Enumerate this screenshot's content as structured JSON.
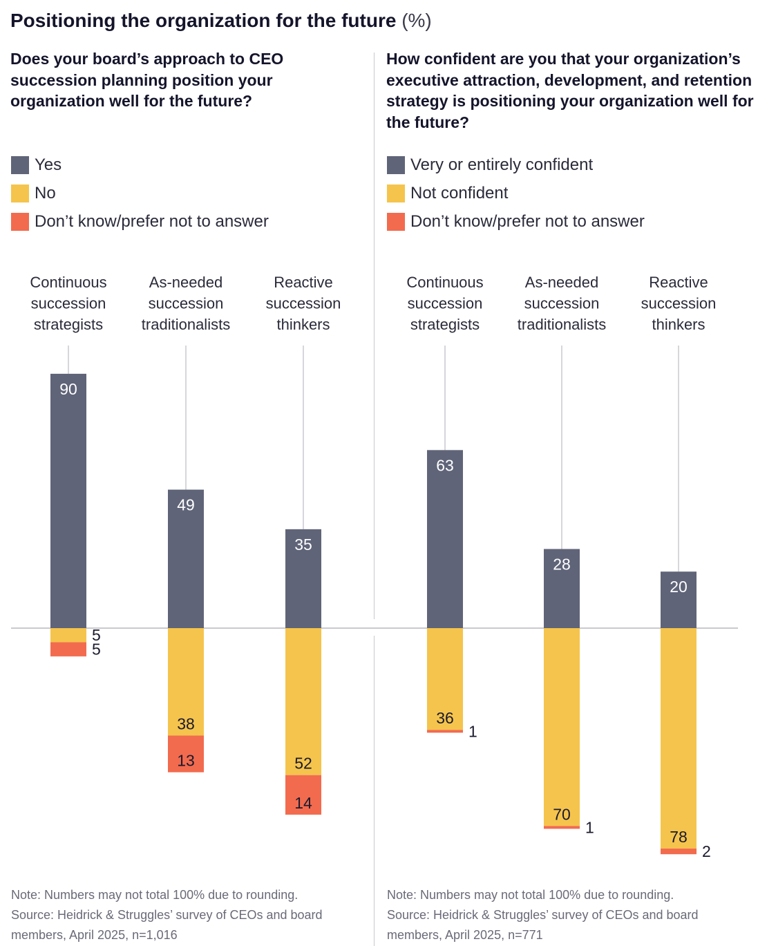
{
  "title": "Positioning the organization for the future",
  "title_unit": "(%)",
  "colors": {
    "positive": "#5f6478",
    "negative": "#f5c44c",
    "unknown": "#f26b4e",
    "category_text": "#2a2a3a",
    "leader_line": "#c9c9cf",
    "baseline": "#c9c9cf"
  },
  "left_panel": {
    "question": "Does your board’s approach to CEO succession planning position your organization well for the future?",
    "legend": [
      {
        "label": "Yes",
        "color": "#5f6478"
      },
      {
        "label": "No",
        "color": "#f5c44c"
      },
      {
        "label": "Don’t know/prefer not to answer",
        "color": "#f26b4e"
      }
    ],
    "note": "Note: Numbers may not total 100% due to rounding.",
    "source": "Source: Heidrick & Struggles’ survey of CEOs and board members, April 2025, n=1,016"
  },
  "right_panel": {
    "question": "How confident are you that your organization’s executive attraction, development, and retention strategy is positioning your organization well for the future?",
    "legend": [
      {
        "label": "Very or entirely confident",
        "color": "#5f6478"
      },
      {
        "label": "Not confident",
        "color": "#f5c44c"
      },
      {
        "label": "Don’t know/prefer not to answer",
        "color": "#f26b4e"
      }
    ],
    "note": "Note: Numbers may not total 100% due to rounding.",
    "source": "Source: Heidrick & Struggles’ survey of CEOs and board members, April 2025, n=771"
  },
  "chart_data": [
    {
      "type": "bar",
      "stacked": true,
      "diverging": true,
      "categories": [
        [
          "Continuous",
          "succession",
          "strategists"
        ],
        [
          "As-needed",
          "succession",
          "traditionalists"
        ],
        [
          "Reactive",
          "succession",
          "thinkers"
        ]
      ],
      "series": [
        {
          "name": "Yes",
          "values": [
            90,
            49,
            35
          ],
          "direction": "up"
        },
        {
          "name": "No",
          "values": [
            5,
            38,
            52
          ],
          "direction": "down"
        },
        {
          "name": "Don’t know/prefer not to answer",
          "values": [
            5,
            13,
            14
          ],
          "direction": "down"
        }
      ],
      "unit": "%"
    },
    {
      "type": "bar",
      "stacked": true,
      "diverging": true,
      "categories": [
        [
          "Continuous",
          "succession",
          "strategists"
        ],
        [
          "As-needed",
          "succession",
          "traditionalists"
        ],
        [
          "Reactive",
          "succession",
          "thinkers"
        ]
      ],
      "series": [
        {
          "name": "Very or entirely confident",
          "values": [
            63,
            28,
            20
          ],
          "direction": "up"
        },
        {
          "name": "Not confident",
          "values": [
            36,
            70,
            78
          ],
          "direction": "down"
        },
        {
          "name": "Don’t know/prefer not to answer",
          "values": [
            1,
            1,
            2
          ],
          "direction": "down"
        }
      ],
      "unit": "%"
    }
  ]
}
